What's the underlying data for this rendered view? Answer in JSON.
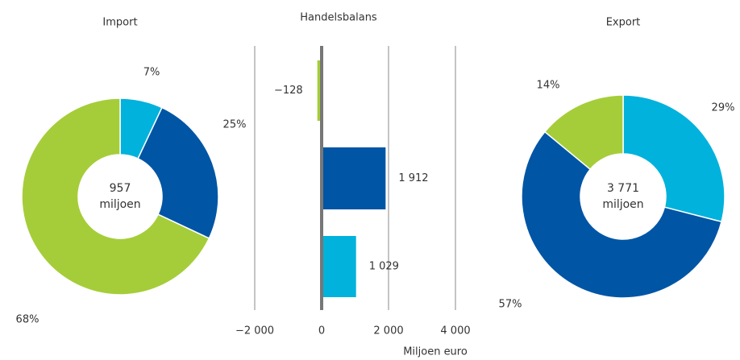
{
  "chart_data": [
    {
      "type": "pie",
      "title": "Import",
      "center_lines": [
        "957",
        "miljoen"
      ],
      "values": [
        7,
        25,
        68
      ],
      "value_labels": [
        "7%",
        "25%",
        "68%"
      ],
      "colors": [
        "#00b2dc",
        "#0055a5",
        "#a5cd39"
      ]
    },
    {
      "type": "barh",
      "title": "Handelsbalans",
      "xlabel": "Miljoen euro",
      "values": [
        -128,
        1912,
        1029
      ],
      "value_labels": [
        "−128",
        "1 912",
        "1 029"
      ],
      "colors": [
        "#a5cd39",
        "#0055a5",
        "#00b2dc"
      ],
      "xlim": [
        -2000,
        4000
      ],
      "xticks": [
        {
          "value": -2000,
          "label": "−2 000"
        },
        0,
        {
          "value": 2000,
          "label": "2 000"
        },
        {
          "value": 4000,
          "label": "4 000"
        }
      ],
      "grid": true
    },
    {
      "type": "pie",
      "title": "Export",
      "center_lines": [
        "3 771",
        "miljoen"
      ],
      "values": [
        29,
        57,
        14
      ],
      "value_labels": [
        "29%",
        "57%",
        "14%"
      ],
      "colors": [
        "#00b2dc",
        "#0055a5",
        "#a5cd39"
      ]
    }
  ]
}
